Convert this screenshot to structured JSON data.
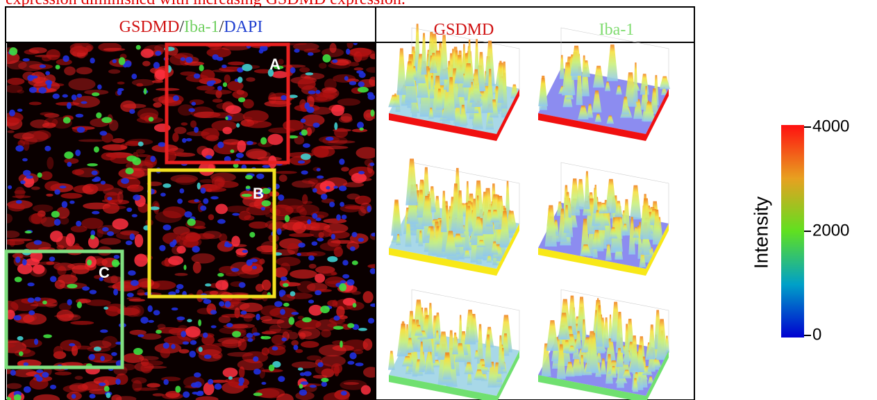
{
  "caption_fragment": "expression diminished with increasing GSDMD expression.",
  "image_panel": {
    "header": [
      "GSDMD",
      "/",
      "Iba-1",
      "/",
      "DAPI"
    ],
    "regions": [
      "A",
      "B",
      "C"
    ]
  },
  "surface_panel": {
    "columns": [
      "GSDMD",
      "Iba-1"
    ]
  },
  "colorbar": {
    "label": "Intensity",
    "range": [
      0,
      4000
    ],
    "ticks": [
      0,
      2000,
      4000
    ]
  }
}
